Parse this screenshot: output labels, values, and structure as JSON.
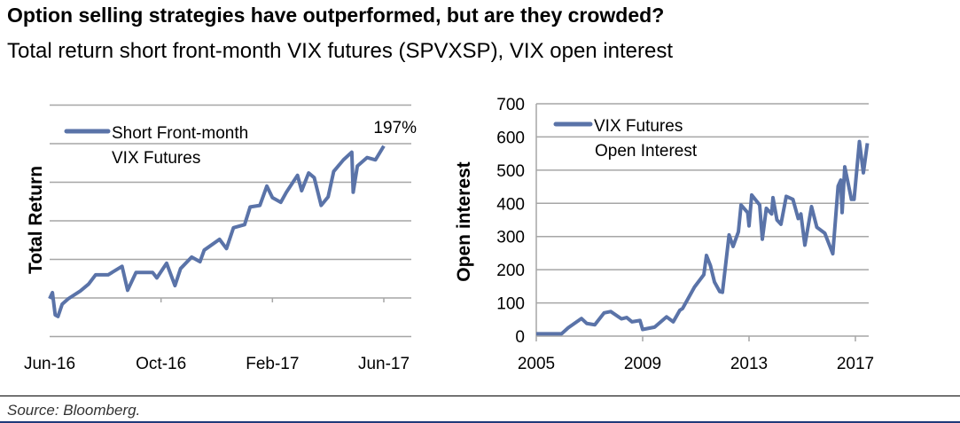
{
  "header": {
    "title": "Option selling strategies have outperformed, but are they crowded?",
    "subtitle": "Total return short front-month VIX futures (SPVXSP), VIX open interest"
  },
  "footer": {
    "source": "Source: Bloomberg."
  },
  "colors": {
    "series": "#5a73a8",
    "grid": "#a6a6a6",
    "text": "#000000"
  },
  "chart_data": [
    {
      "type": "line",
      "title": "",
      "ylabel": "Total Return",
      "xlabel": "",
      "x_unit": "months since Jun-16",
      "ylim": [
        -50,
        250
      ],
      "y_grid_step": 50,
      "grid": true,
      "xticks": [
        {
          "x": 0,
          "label": "Jun-16"
        },
        {
          "x": 4,
          "label": "Oct-16"
        },
        {
          "x": 8,
          "label": "Feb-17"
        },
        {
          "x": 12,
          "label": "Jun-17"
        }
      ],
      "legend": {
        "label_line1": "Short Front-month",
        "label_line2": "VIX Futures",
        "placement": "top-left"
      },
      "annotation": "197%",
      "series": [
        {
          "name": "Short Front-month VIX Futures",
          "x": [
            0,
            0.1,
            0.2,
            0.3,
            0.45,
            0.67,
            1.1,
            1.4,
            1.65,
            2.1,
            2.6,
            2.8,
            3.1,
            3.7,
            3.85,
            4.2,
            4.5,
            4.7,
            5.1,
            5.4,
            5.55,
            6.1,
            6.35,
            6.6,
            7.0,
            7.2,
            7.55,
            7.8,
            8.0,
            8.3,
            8.5,
            8.9,
            9.05,
            9.3,
            9.5,
            9.75,
            10.0,
            10.2,
            10.55,
            10.85,
            10.9,
            11.05,
            11.4,
            11.7,
            12.0
          ],
          "values": [
            -1,
            7,
            -22,
            -24,
            -8,
            -1,
            9,
            18,
            30,
            30,
            41,
            10,
            33,
            33,
            26,
            45,
            16,
            38,
            53,
            47,
            62,
            76,
            64,
            91,
            95,
            118,
            120,
            145,
            130,
            124,
            137,
            159,
            139,
            162,
            156,
            120,
            131,
            164,
            179,
            189,
            137,
            171,
            182,
            179,
            197
          ]
        }
      ]
    },
    {
      "type": "line",
      "title": "",
      "ylabel": "Open interest",
      "xlabel": "",
      "xlim": [
        2005,
        2017.6
      ],
      "ylim": [
        0,
        700
      ],
      "y_grid_step": 100,
      "grid": true,
      "yticks": [
        "0",
        "100",
        "200",
        "300",
        "400",
        "500",
        "600",
        "700"
      ],
      "xticks": [
        {
          "x": 2005,
          "label": "2005"
        },
        {
          "x": 2009,
          "label": "2009"
        },
        {
          "x": 2013,
          "label": "2013"
        },
        {
          "x": 2017,
          "label": "2017"
        }
      ],
      "legend": {
        "label_line1": "VIX Futures",
        "label_line2": "Open Interest",
        "placement": "top-left"
      },
      "series": [
        {
          "name": "VIX Futures Open Interest",
          "x": [
            2005,
            2005.95,
            2006.2,
            2006.7,
            2006.9,
            2007.2,
            2007.55,
            2007.8,
            2008.2,
            2008.4,
            2008.6,
            2008.9,
            2009.0,
            2009.45,
            2009.9,
            2010.15,
            2010.4,
            2010.5,
            2010.95,
            2011.3,
            2011.4,
            2011.55,
            2011.7,
            2011.9,
            2012.0,
            2012.25,
            2012.4,
            2012.6,
            2012.7,
            2012.95,
            2013.0,
            2013.1,
            2013.4,
            2013.5,
            2013.65,
            2013.85,
            2013.9,
            2014.05,
            2014.2,
            2014.4,
            2014.65,
            2014.85,
            2014.95,
            2015.1,
            2015.35,
            2015.55,
            2015.85,
            2016.15,
            2016.35,
            2016.45,
            2016.5,
            2016.6,
            2016.85,
            2016.95,
            2017.15,
            2017.3,
            2017.45
          ],
          "values": [
            7,
            7,
            25,
            53,
            38,
            34,
            70,
            74,
            52,
            56,
            43,
            47,
            20,
            27,
            58,
            43,
            78,
            83,
            148,
            185,
            243,
            212,
            163,
            134,
            132,
            305,
            270,
            314,
            395,
            372,
            332,
            425,
            395,
            292,
            385,
            368,
            417,
            350,
            337,
            421,
            412,
            354,
            368,
            274,
            390,
            328,
            310,
            248,
            452,
            470,
            372,
            510,
            412,
            412,
            586,
            492,
            581
          ]
        }
      ]
    }
  ]
}
